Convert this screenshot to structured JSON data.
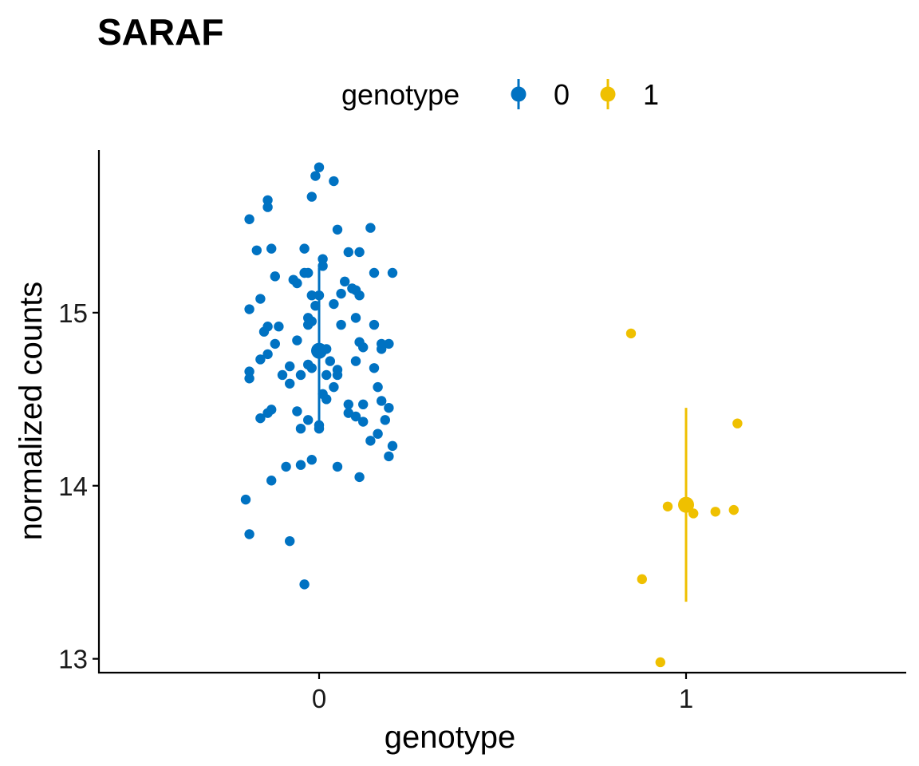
{
  "chart_data": {
    "type": "scatter",
    "title": "SARAF",
    "xlabel": "genotype",
    "ylabel": "normalized counts",
    "x_categories": [
      "0",
      "1"
    ],
    "x_range": [
      -0.6,
      1.6
    ],
    "ylim": [
      12.92,
      15.94
    ],
    "y_ticks": [
      13,
      14,
      15
    ],
    "grid": false,
    "legend": {
      "title": "genotype",
      "placement": "top",
      "entries": [
        "0",
        "1"
      ]
    },
    "colors": {
      "0": "#0072C2",
      "1": "#EFC000"
    },
    "series": [
      {
        "name": "0",
        "summary": {
          "x": 0,
          "mean": 14.78,
          "low": 14.33,
          "high": 15.26
        },
        "points": [
          [
            0.0,
            15.84
          ],
          [
            0.04,
            15.76
          ],
          [
            -0.01,
            15.79
          ],
          [
            -0.02,
            15.67
          ],
          [
            -0.14,
            15.65
          ],
          [
            -0.14,
            15.61
          ],
          [
            -0.19,
            15.54
          ],
          [
            0.05,
            15.48
          ],
          [
            0.14,
            15.49
          ],
          [
            -0.17,
            15.36
          ],
          [
            -0.13,
            15.37
          ],
          [
            -0.04,
            15.37
          ],
          [
            0.08,
            15.35
          ],
          [
            0.11,
            15.35
          ],
          [
            0.01,
            15.31
          ],
          [
            0.01,
            15.27
          ],
          [
            -0.04,
            15.23
          ],
          [
            -0.03,
            15.23
          ],
          [
            -0.12,
            15.21
          ],
          [
            -0.07,
            15.19
          ],
          [
            -0.06,
            15.17
          ],
          [
            0.07,
            15.18
          ],
          [
            0.15,
            15.23
          ],
          [
            0.2,
            15.23
          ],
          [
            0.09,
            15.14
          ],
          [
            0.1,
            15.13
          ],
          [
            0.06,
            15.11
          ],
          [
            0.11,
            15.1
          ],
          [
            0.0,
            15.1
          ],
          [
            -0.02,
            15.1
          ],
          [
            -0.16,
            15.08
          ],
          [
            -0.19,
            15.02
          ],
          [
            0.04,
            15.05
          ],
          [
            -0.01,
            15.04
          ],
          [
            -0.03,
            14.97
          ],
          [
            -0.02,
            14.95
          ],
          [
            -0.03,
            14.93
          ],
          [
            0.1,
            14.97
          ],
          [
            0.15,
            14.93
          ],
          [
            0.06,
            14.93
          ],
          [
            -0.11,
            14.92
          ],
          [
            -0.14,
            14.92
          ],
          [
            -0.15,
            14.89
          ],
          [
            -0.12,
            14.82
          ],
          [
            -0.06,
            14.84
          ],
          [
            0.11,
            14.83
          ],
          [
            0.17,
            14.82
          ],
          [
            0.19,
            14.82
          ],
          [
            0.12,
            14.8
          ],
          [
            0.17,
            14.79
          ],
          [
            0.02,
            14.79
          ],
          [
            -0.14,
            14.76
          ],
          [
            -0.16,
            14.73
          ],
          [
            0.03,
            14.72
          ],
          [
            0.1,
            14.72
          ],
          [
            -0.03,
            14.7
          ],
          [
            -0.02,
            14.68
          ],
          [
            -0.08,
            14.69
          ],
          [
            0.15,
            14.68
          ],
          [
            -0.19,
            14.66
          ],
          [
            -0.19,
            14.62
          ],
          [
            -0.1,
            14.64
          ],
          [
            -0.05,
            14.64
          ],
          [
            0.05,
            14.67
          ],
          [
            0.02,
            14.64
          ],
          [
            0.05,
            14.64
          ],
          [
            -0.08,
            14.59
          ],
          [
            0.04,
            14.57
          ],
          [
            0.16,
            14.57
          ],
          [
            0.01,
            14.53
          ],
          [
            0.02,
            14.5
          ],
          [
            0.17,
            14.49
          ],
          [
            0.08,
            14.47
          ],
          [
            0.12,
            14.47
          ],
          [
            0.19,
            14.45
          ],
          [
            -0.13,
            14.44
          ],
          [
            -0.14,
            14.42
          ],
          [
            -0.06,
            14.43
          ],
          [
            0.08,
            14.42
          ],
          [
            0.1,
            14.4
          ],
          [
            0.12,
            14.37
          ],
          [
            0.18,
            14.38
          ],
          [
            -0.16,
            14.39
          ],
          [
            -0.03,
            14.38
          ],
          [
            0.0,
            14.35
          ],
          [
            0.0,
            14.33
          ],
          [
            -0.05,
            14.33
          ],
          [
            0.16,
            14.3
          ],
          [
            0.14,
            14.26
          ],
          [
            0.2,
            14.23
          ],
          [
            0.19,
            14.17
          ],
          [
            -0.02,
            14.15
          ],
          [
            -0.05,
            14.12
          ],
          [
            -0.09,
            14.11
          ],
          [
            0.05,
            14.11
          ],
          [
            0.11,
            14.05
          ],
          [
            -0.13,
            14.03
          ],
          [
            -0.2,
            13.92
          ],
          [
            -0.19,
            13.72
          ],
          [
            -0.08,
            13.68
          ],
          [
            -0.04,
            13.43
          ]
        ]
      },
      {
        "name": "1",
        "summary": {
          "x": 1,
          "mean": 13.89,
          "low": 13.33,
          "high": 14.45
        },
        "points": [
          [
            0.85,
            14.88
          ],
          [
            1.14,
            14.36
          ],
          [
            0.95,
            13.88
          ],
          [
            1.02,
            13.84
          ],
          [
            1.08,
            13.85
          ],
          [
            1.13,
            13.86
          ],
          [
            0.88,
            13.46
          ],
          [
            0.93,
            12.98
          ]
        ]
      }
    ]
  }
}
